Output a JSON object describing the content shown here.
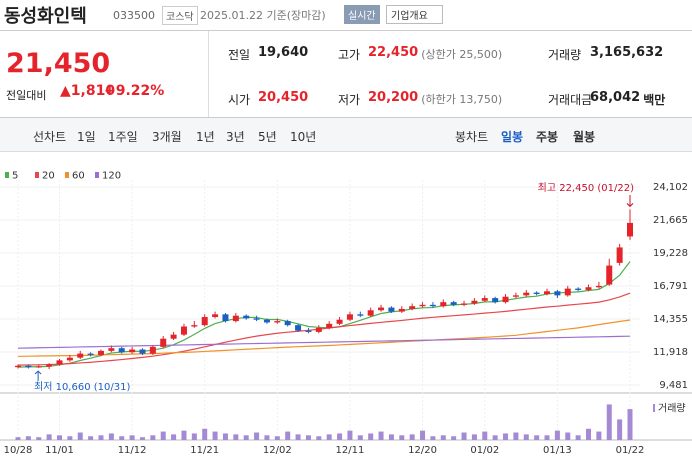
{
  "header": {
    "name": "동성화인텍",
    "code": "033500",
    "market": "코스닥",
    "date": "2025.01.22",
    "basis": "기준(장마감)",
    "realtime": "실시간",
    "company": "기업개요"
  },
  "price": {
    "current": "21,450",
    "change_label": "전일대비",
    "change": "1,810",
    "rate": "+9.22%"
  },
  "summary": [
    {
      "label": "전일",
      "value": "19,640"
    },
    {
      "label": "고가",
      "value": "22,450",
      "note": "(상한가 25,500)"
    },
    {
      "label": "거래량",
      "value": "3,165,632"
    },
    {
      "label": "시가",
      "value": "20,450"
    },
    {
      "label": "저가",
      "value": "20,200",
      "note": "(하한가 13,750)"
    },
    {
      "label": "거래대금",
      "value": "68,042",
      "unit": "백만"
    }
  ],
  "tabs": {
    "line_label": "선차트",
    "periods": [
      "1일",
      "1주일",
      "3개월",
      "1년",
      "3년",
      "5년",
      "10년"
    ],
    "candle_label": "봉차트",
    "candles": [
      "일봉",
      "주봉",
      "월봉"
    ]
  },
  "chart_data": {
    "type": "candlestick",
    "up_color": "#e5232b",
    "down_color": "#1b5fc4",
    "categories": [
      "10/28",
      null,
      null,
      null,
      "11/01",
      null,
      null,
      null,
      null,
      null,
      null,
      "11/12",
      null,
      null,
      null,
      null,
      null,
      null,
      "11/21",
      null,
      null,
      null,
      null,
      null,
      null,
      "12/02",
      null,
      null,
      null,
      null,
      null,
      null,
      "12/11",
      null,
      null,
      null,
      null,
      null,
      null,
      "12/20",
      null,
      null,
      null,
      null,
      null,
      "01/02",
      null,
      null,
      null,
      null,
      null,
      null,
      "01/13",
      null,
      null,
      null,
      null,
      null,
      null,
      "01/22"
    ],
    "open": [
      10800,
      10900,
      10800,
      10850,
      11000,
      11300,
      11500,
      11800,
      11700,
      12000,
      12200,
      11900,
      12100,
      11800,
      12300,
      12900,
      13200,
      13800,
      13900,
      14500,
      14700,
      14200,
      14600,
      14400,
      14300,
      14100,
      14200,
      13900,
      13500,
      13400,
      13700,
      14000,
      14300,
      14700,
      14600,
      15000,
      15200,
      14900,
      15100,
      15300,
      15400,
      15300,
      15600,
      15400,
      15500,
      15700,
      15900,
      15600,
      16000,
      16100,
      16300,
      16200,
      16400,
      16100,
      16600,
      16500,
      16700,
      16900,
      18500,
      20450
    ],
    "high": [
      11000,
      11000,
      11000,
      11100,
      11400,
      11700,
      12000,
      11900,
      12100,
      12400,
      12300,
      12300,
      12200,
      12400,
      13100,
      13400,
      14000,
      14200,
      14700,
      14900,
      14800,
      14800,
      14700,
      14600,
      14400,
      14400,
      14300,
      14000,
      13700,
      13900,
      14200,
      14500,
      14900,
      14900,
      15200,
      15400,
      15300,
      15300,
      15500,
      15600,
      15600,
      15800,
      15700,
      15700,
      15900,
      16100,
      16000,
      16200,
      16300,
      16500,
      16400,
      16600,
      16500,
      16800,
      16700,
      16900,
      17100,
      18800,
      19900,
      22450
    ],
    "low": [
      10700,
      10700,
      10750,
      10660,
      10900,
      11200,
      11400,
      11600,
      11600,
      11900,
      11800,
      11800,
      11700,
      11700,
      12200,
      12800,
      13100,
      13700,
      13800,
      14400,
      14100,
      14100,
      14300,
      14200,
      14000,
      14000,
      13800,
      13400,
      13300,
      13300,
      13600,
      13900,
      14200,
      14500,
      14500,
      14900,
      14800,
      14800,
      15000,
      15200,
      15200,
      15200,
      15300,
      15300,
      15400,
      15600,
      15500,
      15500,
      15900,
      16000,
      16100,
      16100,
      15900,
      16000,
      16400,
      16400,
      16600,
      16800,
      18300,
      20200
    ],
    "close": [
      10900,
      10800,
      10850,
      11000,
      11300,
      11500,
      11800,
      11700,
      12000,
      12200,
      11900,
      12100,
      11800,
      12300,
      12900,
      13200,
      13800,
      13900,
      14500,
      14700,
      14200,
      14600,
      14400,
      14300,
      14100,
      14200,
      13900,
      13500,
      13400,
      13700,
      14000,
      14300,
      14700,
      14600,
      15000,
      15200,
      14900,
      15100,
      15300,
      15400,
      15300,
      15600,
      15400,
      15500,
      15700,
      15900,
      15600,
      16000,
      16100,
      16300,
      16200,
      16400,
      16100,
      16600,
      16500,
      16700,
      16800,
      18300,
      19640,
      21450
    ],
    "series": [
      {
        "name": "5",
        "color": "#4caf50",
        "values": [
          10800,
          10820,
          10830,
          10850,
          10970,
          11090,
          11290,
          11460,
          11660,
          11840,
          11920,
          11980,
          11960,
          12060,
          12200,
          12460,
          12800,
          13220,
          13660,
          14020,
          14220,
          14380,
          14480,
          14460,
          14320,
          14320,
          14180,
          14000,
          13800,
          13740,
          13700,
          13780,
          14020,
          14260,
          14520,
          14760,
          14880,
          14960,
          15100,
          15180,
          15200,
          15340,
          15400,
          15440,
          15500,
          15620,
          15620,
          15740,
          15860,
          15980,
          16040,
          16200,
          16280,
          16320,
          16360,
          16460,
          16540,
          16980,
          17590,
          18590
        ]
      },
      {
        "name": "20",
        "color": "#e8474c",
        "values": [
          10950,
          10960,
          10970,
          10990,
          11020,
          11060,
          11110,
          11160,
          11220,
          11290,
          11360,
          11440,
          11520,
          11610,
          11720,
          11840,
          11980,
          12130,
          12300,
          12470,
          12640,
          12800,
          12950,
          13090,
          13200,
          13300,
          13380,
          13450,
          13520,
          13600,
          13690,
          13780,
          13870,
          13950,
          14030,
          14110,
          14180,
          14250,
          14330,
          14410,
          14480,
          14540,
          14600,
          14660,
          14720,
          14790,
          14850,
          14920,
          15000,
          15080,
          15160,
          15240,
          15300,
          15380,
          15450,
          15520,
          15600,
          15760,
          15980,
          16260
        ]
      },
      {
        "name": "60",
        "color": "#f0922b",
        "values": [
          11600,
          11610,
          11620,
          11630,
          11640,
          11650,
          11660,
          11680,
          11700,
          11720,
          11740,
          11760,
          11780,
          11800,
          11830,
          11860,
          11890,
          11920,
          11960,
          12000,
          12040,
          12080,
          12120,
          12160,
          12200,
          12240,
          12280,
          12310,
          12340,
          12370,
          12400,
          12440,
          12480,
          12520,
          12560,
          12600,
          12640,
          12680,
          12720,
          12760,
          12800,
          12840,
          12880,
          12920,
          12960,
          13000,
          13050,
          13100,
          13150,
          13250,
          13340,
          13430,
          13520,
          13610,
          13700,
          13820,
          13940,
          14060,
          14170,
          14280
        ]
      },
      {
        "name": "120",
        "color": "#9b6fd0",
        "values": [
          12200,
          12215,
          12230,
          12245,
          12260,
          12275,
          12290,
          12305,
          12320,
          12335,
          12350,
          12365,
          12380,
          12395,
          12410,
          12425,
          12440,
          12455,
          12470,
          12485,
          12500,
          12515,
          12530,
          12545,
          12560,
          12575,
          12590,
          12605,
          12620,
          12635,
          12650,
          12665,
          12680,
          12695,
          12710,
          12725,
          12740,
          12755,
          12770,
          12785,
          12800,
          12815,
          12830,
          12845,
          12860,
          12875,
          12890,
          12905,
          12920,
          12935,
          12950,
          12965,
          12980,
          12995,
          13010,
          13025,
          13040,
          13055,
          13070,
          13085
        ]
      }
    ],
    "ylim": [
      9481,
      24102
    ],
    "yticks": [
      {
        "value": 9481,
        "label": "9,481"
      },
      {
        "value": 11918,
        "label": "11,918"
      },
      {
        "value": 14355,
        "label": "14,355"
      },
      {
        "value": 16791,
        "label": "16,791"
      },
      {
        "value": 19228,
        "label": "19,228"
      },
      {
        "value": 21665,
        "label": "21,665"
      },
      {
        "value": 24102,
        "label": "24,102"
      }
    ],
    "high_label": "최고 22,450 (01/22)",
    "low_label": "최저 10,660 (10/31)",
    "volume": {
      "name": "거래량",
      "color": "#a48ad4",
      "ylim": [
        0,
        4100000
      ],
      "values": [
        288000,
        384000,
        288000,
        576000,
        480000,
        384000,
        768000,
        384000,
        480000,
        672000,
        384000,
        480000,
        288000,
        480000,
        864000,
        576000,
        960000,
        672000,
        1152000,
        864000,
        672000,
        576000,
        480000,
        768000,
        480000,
        384000,
        864000,
        576000,
        480000,
        384000,
        576000,
        672000,
        960000,
        480000,
        672000,
        864000,
        576000,
        480000,
        576000,
        960000,
        384000,
        480000,
        384000,
        768000,
        576000,
        864000,
        480000,
        672000,
        768000,
        576000,
        480000,
        480000,
        960000,
        768000,
        480000,
        1152000,
        864000,
        3648000,
        2112000,
        3165632
      ]
    }
  }
}
